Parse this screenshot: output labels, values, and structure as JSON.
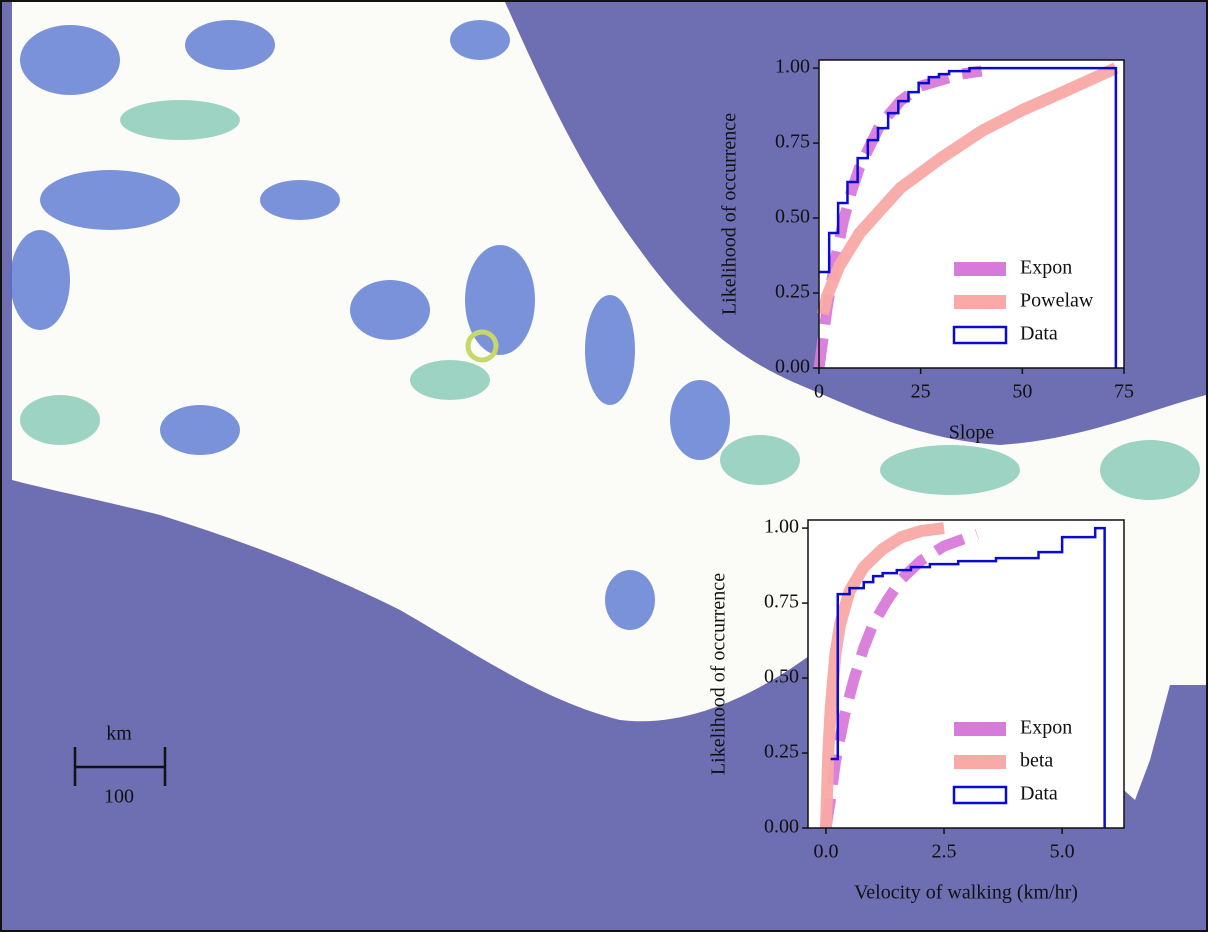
{
  "map": {
    "scale_bar": {
      "unit": "km",
      "length": 100
    }
  },
  "chart_data": [
    {
      "type": "line",
      "xlabel": "Slope",
      "ylabel": "Likelihood of occurrence",
      "xlim": [
        0,
        75
      ],
      "xticks": [
        0,
        25,
        50,
        75
      ],
      "ylim": [
        0,
        1.027
      ],
      "yticks": [
        {
          "value": 0,
          "label": "0.00"
        },
        {
          "value": 0.25,
          "label": "0.25"
        },
        {
          "value": 0.5,
          "label": "0.50"
        },
        {
          "value": 0.75,
          "label": "0.75"
        },
        {
          "value": 1,
          "label": "1.00"
        }
      ],
      "legend": "lower right",
      "series": [
        {
          "name": "Expon",
          "color": "#d77ad9",
          "linestyle": "dashed",
          "x": [
            0,
            2,
            4,
            6,
            8,
            10,
            15,
            20,
            25,
            30,
            35,
            40
          ],
          "values": [
            0,
            0.2,
            0.36,
            0.49,
            0.59,
            0.67,
            0.81,
            0.89,
            0.94,
            0.96,
            0.98,
            0.99
          ]
        },
        {
          "name": "Powelaw",
          "color": "#f9a9a6",
          "linestyle": "solid",
          "x": [
            1,
            2,
            5,
            10,
            20,
            30,
            40,
            50,
            60,
            73
          ],
          "values": [
            0.18,
            0.24,
            0.34,
            0.45,
            0.6,
            0.7,
            0.79,
            0.86,
            0.92,
            1
          ]
        },
        {
          "name": "Data",
          "color": "#0a0ad0",
          "linestyle": "steps",
          "x": [
            0,
            2.5,
            4.7,
            7,
            9.5,
            12,
            14.5,
            17,
            19.5,
            22,
            24.5,
            27,
            29.5,
            32,
            37,
            73
          ],
          "values": [
            0.32,
            0.45,
            0.55,
            0.62,
            0.7,
            0.76,
            0.8,
            0.85,
            0.89,
            0.92,
            0.95,
            0.97,
            0.98,
            0.99,
            1,
            0
          ]
        }
      ]
    },
    {
      "type": "line",
      "xlabel": "Velocity of walking (km/hr)",
      "ylabel": "Likelihood of occurrence",
      "xlim": [
        -0.38,
        6.31
      ],
      "xticks": [
        {
          "value": 0,
          "label": "0.0"
        },
        2.5,
        {
          "value": 5,
          "label": "5.0"
        }
      ],
      "ylim": [
        0,
        1.027
      ],
      "yticks": [
        {
          "value": 0,
          "label": "0.00"
        },
        {
          "value": 0.25,
          "label": "0.25"
        },
        {
          "value": 0.5,
          "label": "0.50"
        },
        {
          "value": 0.75,
          "label": "0.75"
        },
        {
          "value": 1,
          "label": "1.00"
        }
      ],
      "legend": "lower right",
      "series": [
        {
          "name": "Expon",
          "color": "#d77ad9",
          "linestyle": "dashed",
          "x": [
            0,
            0.1,
            0.2,
            0.4,
            0.6,
            0.8,
            1,
            1.3,
            1.6,
            2,
            2.5,
            3.2
          ],
          "values": [
            0,
            0.1,
            0.22,
            0.38,
            0.5,
            0.6,
            0.68,
            0.76,
            0.83,
            0.89,
            0.94,
            0.98
          ]
        },
        {
          "name": "beta",
          "color": "#f9a9a6",
          "linestyle": "solid",
          "x": [
            0,
            0.05,
            0.1,
            0.2,
            0.3,
            0.5,
            0.8,
            1.2,
            1.6,
            2,
            2.5
          ],
          "values": [
            0,
            0.25,
            0.4,
            0.58,
            0.68,
            0.79,
            0.87,
            0.93,
            0.97,
            0.99,
            1
          ]
        },
        {
          "name": "Data",
          "color": "#0a0ad0",
          "linestyle": "steps",
          "x": [
            0.1,
            0.25,
            0.5,
            0.8,
            1,
            1.2,
            1.5,
            1.8,
            2.2,
            2.8,
            3.6,
            4.5,
            5,
            5.7,
            5.9
          ],
          "values": [
            0.23,
            0.78,
            0.8,
            0.82,
            0.84,
            0.85,
            0.86,
            0.87,
            0.88,
            0.89,
            0.9,
            0.92,
            0.97,
            1,
            0
          ]
        }
      ]
    }
  ]
}
